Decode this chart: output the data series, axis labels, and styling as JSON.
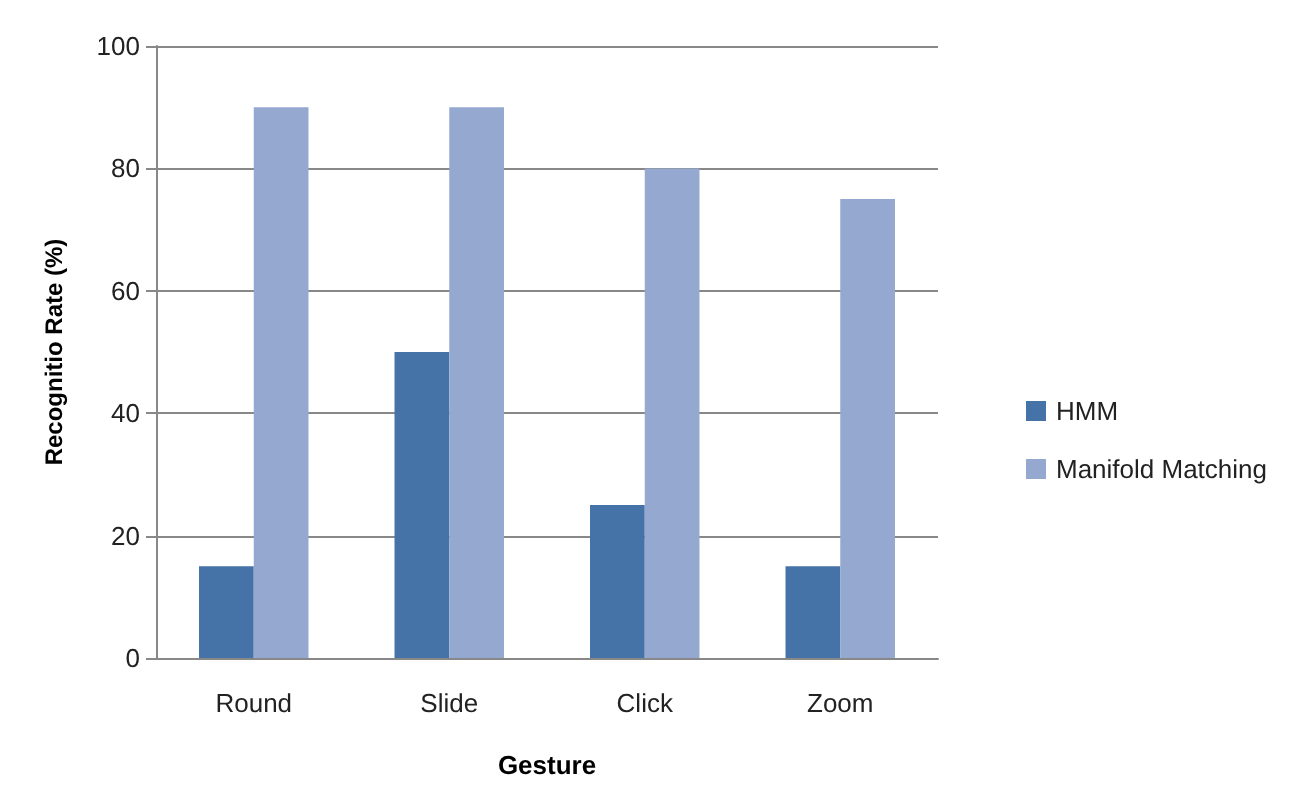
{
  "chart_data": {
    "type": "bar",
    "xlabel": "Gesture",
    "ylabel": "Recognitio Rate (%)",
    "categories": [
      "Round",
      "Slide",
      "Click",
      "Zoom"
    ],
    "series": [
      {
        "name": "HMM",
        "color": "#4673a7",
        "values": [
          15,
          50,
          25,
          15
        ]
      },
      {
        "name": "Manifold Matching",
        "color": "#95a9d0",
        "values": [
          90,
          90,
          80,
          75
        ]
      }
    ],
    "ylim": [
      0,
      100
    ],
    "yticks": [
      0,
      20,
      40,
      60,
      80,
      100
    ],
    "grid": "y",
    "legend": "right"
  }
}
